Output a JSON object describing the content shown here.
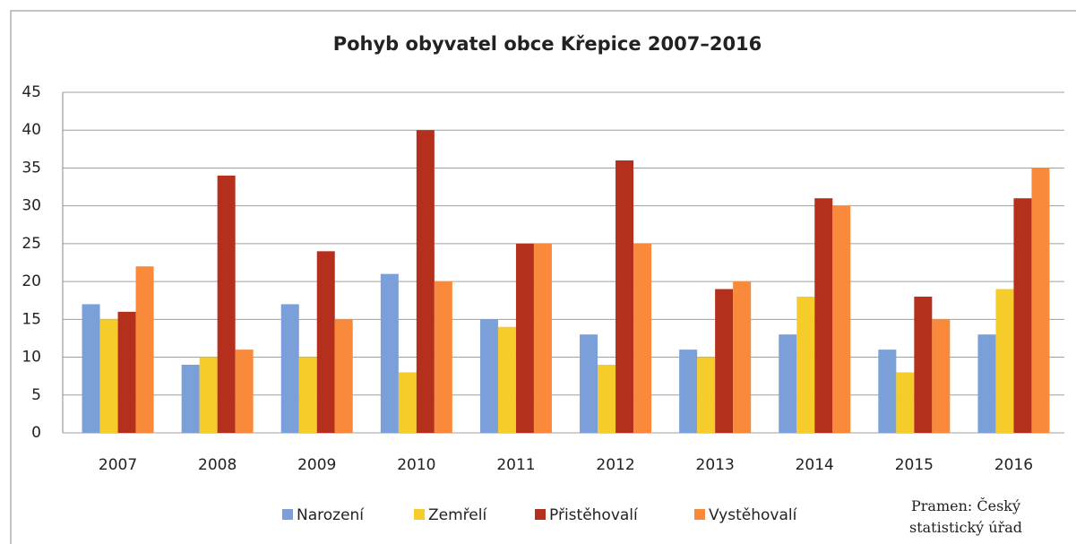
{
  "chart_data": {
    "type": "bar",
    "title": "Pohyb obyvatel obce Křepice 2007–2016",
    "categories": [
      "2007",
      "2008",
      "2009",
      "2010",
      "2011",
      "2012",
      "2013",
      "2014",
      "2015",
      "2016"
    ],
    "series": [
      {
        "name": "Narození",
        "color": "#7b9fd8",
        "values": [
          17,
          9,
          17,
          21,
          15,
          13,
          11,
          13,
          11,
          13
        ]
      },
      {
        "name": "Zemřelí",
        "color": "#f5cc2a",
        "values": [
          15,
          10,
          10,
          8,
          14,
          9,
          10,
          18,
          8,
          19
        ]
      },
      {
        "name": "Přistěhovalí",
        "color": "#b5301c",
        "values": [
          16,
          34,
          24,
          40,
          25,
          36,
          19,
          31,
          18,
          31
        ]
      },
      {
        "name": "Vystěhovalí",
        "color": "#f98a3c",
        "values": [
          22,
          11,
          15,
          20,
          25,
          25,
          20,
          30,
          15,
          35
        ]
      }
    ],
    "ylim": [
      0,
      45
    ],
    "yticks": [
      0,
      5,
      10,
      15,
      20,
      25,
      30,
      35,
      40,
      45
    ],
    "grid": true,
    "annotation": "Pramen: Český statistický úřad"
  }
}
